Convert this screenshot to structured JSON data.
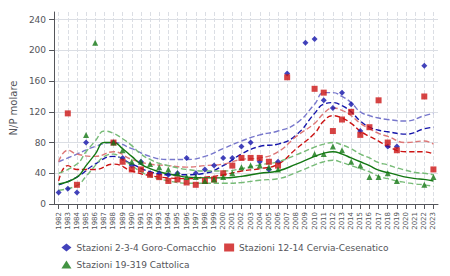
{
  "chart_data": {
    "type": "scatter",
    "ylabel": "N/P molare",
    "xlim": [
      1981.5,
      2023.5
    ],
    "xticks": [
      1982,
      1983,
      1984,
      1985,
      1986,
      1987,
      1988,
      1989,
      1990,
      1991,
      1992,
      1993,
      1994,
      1995,
      1996,
      1997,
      1998,
      1999,
      2000,
      2001,
      2002,
      2003,
      2004,
      2005,
      2006,
      2007,
      2008,
      2009,
      2010,
      2011,
      2012,
      2013,
      2014,
      2015,
      2016,
      2017,
      2018,
      2019,
      2020,
      2021,
      2022,
      2023
    ],
    "ylim": [
      0,
      250
    ],
    "yticks": [
      0,
      40,
      80,
      120,
      160,
      200,
      240
    ],
    "grid": true,
    "legend": "bottom",
    "series": [
      {
        "type": "line",
        "color": "#1414aa",
        "line_style": "dashed",
        "x": [
          1982,
          1984,
          1986,
          1988,
          1990,
          1992,
          1994,
          1996,
          1998,
          2000,
          2002,
          2004,
          2006,
          2008,
          2010,
          2011,
          2012,
          2013,
          2014,
          2015,
          2016,
          2017,
          2018,
          2020,
          2022,
          2023
        ],
        "values": [
          25,
          35,
          52,
          62,
          52,
          42,
          38,
          38,
          40,
          50,
          65,
          75,
          78,
          90,
          118,
          130,
          132,
          128,
          120,
          108,
          100,
          96,
          94,
          91,
          98,
          100
        ]
      },
      {
        "type": "line",
        "color": "#7777cc",
        "line_style": "dashed",
        "x": [
          1982,
          1984,
          1986,
          1988,
          1990,
          1992,
          1994,
          1996,
          1998,
          2000,
          2002,
          2004,
          2006,
          2008,
          2010,
          2011,
          2012,
          2013,
          2014,
          2015,
          2016,
          2017,
          2018,
          2020,
          2022,
          2023
        ],
        "values": [
          55,
          65,
          75,
          80,
          72,
          62,
          58,
          58,
          62,
          72,
          82,
          90,
          95,
          105,
          130,
          145,
          145,
          140,
          132,
          120,
          115,
          112,
          110,
          108,
          115,
          118
        ]
      },
      {
        "type": "line",
        "color": "#cc1414",
        "line_style": "dashed",
        "x": [
          1982,
          1983,
          1984,
          1986,
          1988,
          1990,
          1992,
          1994,
          1996,
          1998,
          2000,
          2002,
          2004,
          2006,
          2008,
          2010,
          2011,
          2012,
          2013,
          2014,
          2015,
          2016,
          2017,
          2018,
          2020,
          2022,
          2023
        ],
        "values": [
          30,
          50,
          45,
          45,
          52,
          43,
          37,
          34,
          33,
          35,
          38,
          43,
          46,
          52,
          72,
          92,
          108,
          115,
          112,
          105,
          95,
          88,
          82,
          75,
          68,
          68,
          65
        ]
      },
      {
        "type": "line",
        "color": "#dd7777",
        "line_style": "dashed",
        "x": [
          1982,
          1983,
          1984,
          1986,
          1988,
          1990,
          1992,
          1994,
          1996,
          1998,
          2000,
          2002,
          2004,
          2006,
          2008,
          2010,
          2011,
          2012,
          2013,
          2014,
          2015,
          2016,
          2017,
          2018,
          2020,
          2022,
          2023
        ],
        "values": [
          55,
          70,
          65,
          62,
          68,
          58,
          52,
          50,
          48,
          50,
          52,
          58,
          60,
          68,
          88,
          105,
          118,
          125,
          122,
          115,
          105,
          98,
          92,
          88,
          80,
          82,
          78
        ]
      },
      {
        "type": "line",
        "color": "#147814",
        "line_style": "solid",
        "x": [
          1982,
          1984,
          1985,
          1986,
          1987,
          1988,
          1989,
          1990,
          1991,
          1992,
          1993,
          1994,
          1995,
          1996,
          1998,
          2000,
          2002,
          2004,
          2006,
          2008,
          2010,
          2011,
          2012,
          2013,
          2014,
          2015,
          2016,
          2017,
          2018,
          2019,
          2020,
          2021,
          2022,
          2023
        ],
        "values": [
          26,
          35,
          50,
          65,
          80,
          80,
          72,
          62,
          52,
          46,
          42,
          39,
          37,
          35,
          34,
          34,
          36,
          40,
          43,
          52,
          62,
          66,
          68,
          65,
          60,
          55,
          50,
          44,
          41,
          38,
          35,
          33,
          32,
          30
        ]
      },
      {
        "type": "line",
        "color": "#77bb77",
        "line_style": "dashed",
        "x": [
          1982,
          1984,
          1985,
          1986,
          1987,
          1988,
          1989,
          1990,
          1991,
          1992,
          1993,
          1994,
          1995,
          1996,
          1998,
          2000,
          2002,
          2004,
          2006,
          2008,
          2010,
          2011,
          2012,
          2013,
          2014,
          2015,
          2016,
          2017,
          2018,
          2019,
          2020,
          2021,
          2022,
          2023
        ],
        "values": [
          40,
          52,
          68,
          82,
          95,
          92,
          85,
          76,
          65,
          58,
          53,
          50,
          47,
          45,
          43,
          43,
          46,
          51,
          55,
          64,
          74,
          78,
          80,
          77,
          72,
          65,
          60,
          54,
          51,
          47,
          44,
          41,
          40,
          38
        ]
      },
      {
        "type": "line",
        "color": "#77bb77",
        "line_style": "dashed",
        "x": [
          1982,
          1984,
          1985,
          1986,
          1987,
          1988,
          1989,
          1990,
          1991,
          1992,
          1993,
          1994,
          1995,
          1996,
          1998,
          2000,
          2002,
          2004,
          2006,
          2008,
          2010,
          2011,
          2012,
          2013,
          2014,
          2015,
          2016,
          2017,
          2018,
          2019,
          2020,
          2021,
          2022,
          2023
        ],
        "values": [
          18,
          24,
          36,
          50,
          62,
          65,
          58,
          50,
          42,
          36,
          33,
          30,
          28,
          27,
          27,
          27,
          28,
          31,
          33,
          41,
          51,
          55,
          57,
          54,
          50,
          46,
          42,
          36,
          33,
          30,
          28,
          26,
          25,
          23
        ]
      },
      {
        "type": "scatter",
        "name": "Stazioni 2-3-4 Goro-Comacchio",
        "color": "#1414aa",
        "marker": "diamond",
        "x": [
          1982,
          1983,
          1984,
          1985,
          1986,
          1987,
          1988,
          1989,
          1990,
          1991,
          1992,
          1993,
          1994,
          1995,
          1996,
          1997,
          1998,
          1999,
          2000,
          2001,
          2002,
          2003,
          2004,
          2005,
          2006,
          2007,
          2008,
          2009,
          2010,
          2011,
          2012,
          2013,
          2014,
          2015,
          2016,
          2017,
          2018,
          2019,
          2020,
          2021,
          2022,
          2023
        ],
        "values": [
          15,
          20,
          15,
          80,
          null,
          null,
          80,
          60,
          50,
          55,
          40,
          40,
          38,
          40,
          60,
          40,
          45,
          50,
          60,
          60,
          75,
          80,
          55,
          45,
          55,
          170,
          null,
          210,
          215,
          135,
          125,
          145,
          130,
          95,
          null,
          null,
          75,
          75,
          null,
          null,
          180,
          null
        ]
      },
      {
        "type": "scatter",
        "name": "Stazioni 12-14 Cervia-Cesenatico",
        "color": "#cc1414",
        "marker": "square",
        "x": [
          1982,
          1983,
          1984,
          1985,
          1986,
          1987,
          1988,
          1989,
          1990,
          1991,
          1992,
          1993,
          1994,
          1995,
          1996,
          1997,
          1998,
          1999,
          2000,
          2001,
          2002,
          2003,
          2004,
          2005,
          2006,
          2007,
          2008,
          2009,
          2010,
          2011,
          2012,
          2013,
          2014,
          2015,
          2016,
          2017,
          2018,
          2019,
          2020,
          2021,
          2022,
          2023
        ],
        "values": [
          null,
          118,
          25,
          null,
          null,
          null,
          80,
          55,
          45,
          45,
          38,
          35,
          30,
          32,
          28,
          25,
          30,
          32,
          40,
          50,
          60,
          60,
          60,
          55,
          50,
          165,
          null,
          null,
          150,
          145,
          95,
          110,
          120,
          90,
          100,
          135,
          80,
          70,
          null,
          null,
          140,
          45
        ]
      },
      {
        "type": "scatter",
        "name": "Stazioni 19-319 Cattolica",
        "color": "#147814",
        "marker": "triangle",
        "x": [
          1982,
          1983,
          1984,
          1985,
          1986,
          1987,
          1988,
          1989,
          1990,
          1991,
          1992,
          1993,
          1994,
          1995,
          1996,
          1997,
          1998,
          1999,
          2000,
          2001,
          2002,
          2003,
          2004,
          2005,
          2006,
          2007,
          2008,
          2009,
          2010,
          2011,
          2012,
          2013,
          2014,
          2015,
          2016,
          2017,
          2018,
          2019,
          2020,
          2021,
          2022,
          2023
        ],
        "values": [
          null,
          null,
          null,
          90,
          210,
          null,
          80,
          70,
          55,
          55,
          52,
          48,
          45,
          40,
          35,
          35,
          30,
          32,
          35,
          40,
          48,
          50,
          50,
          48,
          45,
          null,
          null,
          null,
          65,
          65,
          75,
          70,
          55,
          50,
          35,
          35,
          40,
          30,
          null,
          null,
          25,
          35
        ]
      }
    ]
  }
}
